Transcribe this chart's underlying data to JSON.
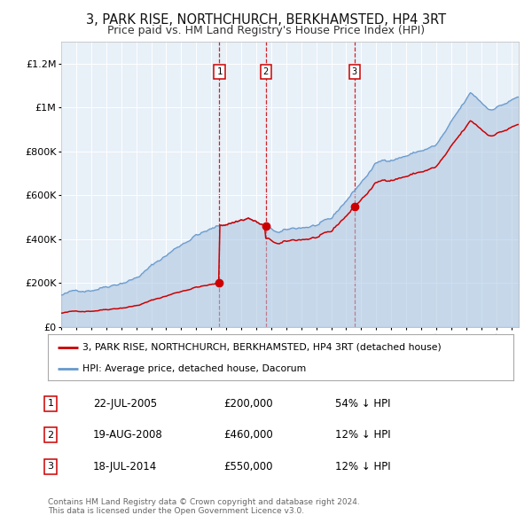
{
  "title": "3, PARK RISE, NORTHCHURCH, BERKHAMSTED, HP4 3RT",
  "subtitle": "Price paid vs. HM Land Registry's House Price Index (HPI)",
  "title_fontsize": 10.5,
  "subtitle_fontsize": 9,
  "background_color": "#ffffff",
  "plot_bg_color": "#e8f0f8",
  "grid_color": "#ffffff",
  "hpi_color": "#6699cc",
  "hpi_fill_color": "#aac4e0",
  "price_color": "#cc0000",
  "sale_marker_color": "#cc0000",
  "sales": [
    {
      "date_year": 2005.55,
      "price": 200000,
      "label": "1"
    },
    {
      "date_year": 2008.63,
      "price": 460000,
      "label": "2"
    },
    {
      "date_year": 2014.54,
      "price": 550000,
      "label": "3"
    }
  ],
  "sale_table": [
    {
      "num": "1",
      "date": "22-JUL-2005",
      "price": "£200,000",
      "rel": "54% ↓ HPI"
    },
    {
      "num": "2",
      "date": "19-AUG-2008",
      "price": "£460,000",
      "rel": "12% ↓ HPI"
    },
    {
      "num": "3",
      "date": "18-JUL-2014",
      "price": "£550,000",
      "rel": "12% ↓ HPI"
    }
  ],
  "legend_labels": [
    "3, PARK RISE, NORTHCHURCH, BERKHAMSTED, HP4 3RT (detached house)",
    "HPI: Average price, detached house, Dacorum"
  ],
  "footer": "Contains HM Land Registry data © Crown copyright and database right 2024.\nThis data is licensed under the Open Government Licence v3.0.",
  "ylim": [
    0,
    1300000
  ],
  "yticks": [
    0,
    200000,
    400000,
    600000,
    800000,
    1000000,
    1200000
  ],
  "ytick_labels": [
    "£0",
    "£200K",
    "£400K",
    "£600K",
    "£800K",
    "£1M",
    "£1.2M"
  ],
  "xstart": 1995,
  "xend": 2025.5
}
